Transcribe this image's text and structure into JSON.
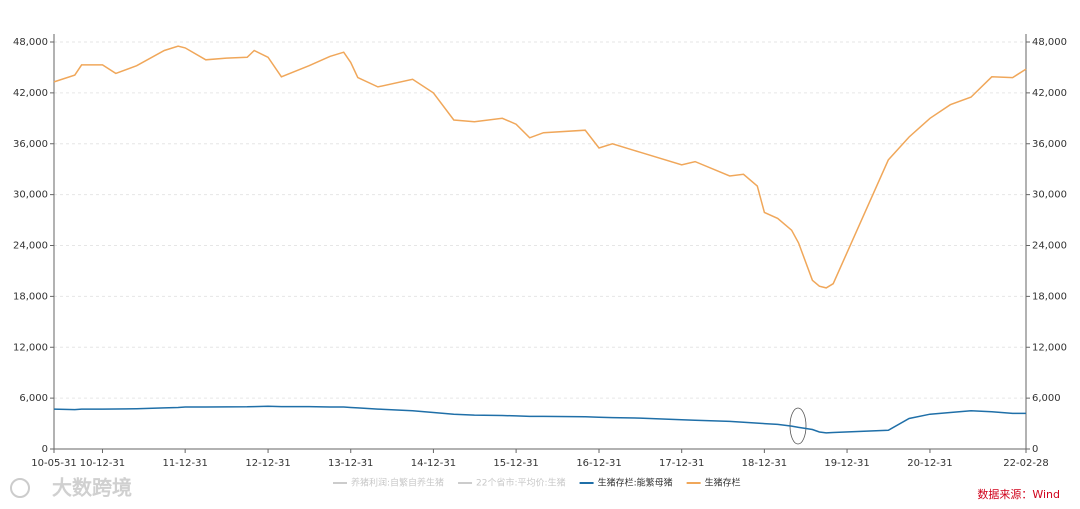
{
  "chart_data": {
    "type": "line",
    "x": [
      "10-05-31",
      "10-08-31",
      "10-09-30",
      "10-12-31",
      "11-02-28",
      "11-05-31",
      "11-09-30",
      "11-11-30",
      "11-12-31",
      "12-03-31",
      "12-06-30",
      "12-09-30",
      "12-10-31",
      "12-12-31",
      "13-02-28",
      "13-06-30",
      "13-09-30",
      "13-11-30",
      "13-12-31",
      "14-01-31",
      "14-04-30",
      "14-09-30",
      "14-12-31",
      "15-03-31",
      "15-06-30",
      "15-10-31",
      "15-12-31",
      "16-02-29",
      "16-04-30",
      "16-10-31",
      "16-12-31",
      "17-02-28",
      "17-06-30",
      "17-12-31",
      "18-02-28",
      "18-07-31",
      "18-09-30",
      "18-11-30",
      "18-12-31",
      "19-02-28",
      "19-04-30",
      "19-05-31",
      "19-07-31",
      "19-08-31",
      "19-09-30",
      "19-10-31",
      "20-06-30",
      "20-09-30",
      "20-12-31",
      "21-03-31",
      "21-06-30",
      "21-09-30",
      "21-12-31",
      "22-02-28"
    ],
    "series": [
      {
        "name": "生猪存栏:能繁母猪",
        "color": "#1f6fa8",
        "axis": "y",
        "values": [
          4700,
          4650,
          4700,
          4700,
          4720,
          4750,
          4850,
          4900,
          4950,
          4950,
          4960,
          4980,
          5000,
          5050,
          5000,
          5000,
          4950,
          4950,
          4900,
          4850,
          4700,
          4500,
          4300,
          4100,
          4000,
          3950,
          3900,
          3850,
          3850,
          3800,
          3750,
          3700,
          3650,
          3450,
          3400,
          3250,
          3150,
          3050,
          3000,
          2900,
          2700,
          2550,
          2300,
          2000,
          1900,
          1950,
          2200,
          3600,
          4100,
          4300,
          4500,
          4400,
          4200,
          4200
        ]
      },
      {
        "name": "生猪存栏",
        "color": "#f0a75a",
        "axis": "y2",
        "values": [
          43300,
          44100,
          45300,
          45300,
          44300,
          45200,
          47000,
          47500,
          47300,
          45900,
          46100,
          46200,
          47000,
          46200,
          43900,
          45200,
          46300,
          46800,
          45600,
          43800,
          42700,
          43600,
          42000,
          38800,
          38600,
          39000,
          38300,
          36700,
          37300,
          37600,
          35500,
          36000,
          35000,
          33500,
          33900,
          32200,
          32400,
          31000,
          27900,
          27200,
          25800,
          24300,
          19900,
          19200,
          19000,
          19500,
          34100,
          36800,
          39000,
          40600,
          41500,
          43900,
          43800,
          44800
        ]
      }
    ],
    "inactive_series": [
      {
        "name": "养猪利润:自繁自养生猪",
        "color": "#cccccc"
      },
      {
        "name": "22个省市:平均价:生猪",
        "color": "#cccccc"
      }
    ],
    "xlim": [
      "10-05-31",
      "22-02-28"
    ],
    "xticks": [
      "10-05-31",
      "10-12-31",
      "11-12-31",
      "12-12-31",
      "13-12-31",
      "14-12-31",
      "15-12-31",
      "16-12-31",
      "17-12-31",
      "18-12-31",
      "19-12-31",
      "20-12-31",
      "22-02-28"
    ],
    "ylim": [
      0,
      48000
    ],
    "yticks": [
      0,
      {
        "value": 6000,
        "label": "6,000"
      },
      {
        "value": 12000,
        "label": "12,000"
      },
      {
        "value": 18000,
        "label": "18,000"
      },
      {
        "value": 24000,
        "label": "24,000"
      },
      {
        "value": 30000,
        "label": "30,000"
      },
      {
        "value": 36000,
        "label": "36,000"
      },
      {
        "value": 42000,
        "label": "42,000"
      },
      {
        "value": 48000,
        "label": "48,000"
      }
    ],
    "y2lim": [
      0,
      48000
    ],
    "y2ticks": [
      0,
      {
        "value": 6000,
        "label": "6,000"
      },
      {
        "value": 12000,
        "label": "12,000"
      },
      {
        "value": 18000,
        "label": "18,000"
      },
      {
        "value": 24000,
        "label": "24,000"
      },
      {
        "value": 30000,
        "label": "30,000"
      },
      {
        "value": 36000,
        "label": "36,000"
      },
      {
        "value": 42000,
        "label": "42,000"
      },
      {
        "value": 48000,
        "label": "48,000"
      }
    ],
    "grid": true,
    "source": "数据来源：Wind",
    "watermark": "大数跨境"
  }
}
